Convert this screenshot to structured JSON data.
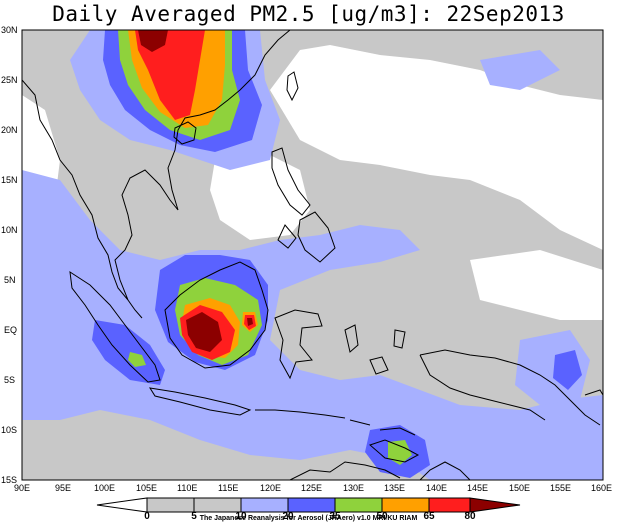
{
  "title": "Daily Averaged PM2.5 [ug/m3]: 22Sep2013",
  "map": {
    "lat_labels": [
      "30N",
      "25N",
      "20N",
      "15N",
      "10N",
      "5N",
      "EQ",
      "5S",
      "10S",
      "15S"
    ],
    "lon_labels": [
      "90E",
      "95E",
      "100E",
      "105E",
      "110E",
      "115E",
      "120E",
      "125E",
      "130E",
      "135E",
      "140E",
      "145E",
      "150E",
      "155E",
      "160E"
    ],
    "extent": {
      "lon_min": 90,
      "lon_max": 160,
      "lat_min": -15,
      "lat_max": 30
    }
  },
  "colorbar": {
    "levels": [
      "0",
      "5",
      "10",
      "20",
      "35",
      "50",
      "65",
      "80"
    ],
    "colors": [
      "#ffffff",
      "#c8c8c8",
      "#a7b0ff",
      "#5a62ff",
      "#8fd23c",
      "#ffa000",
      "#ff1e1e",
      "#8c0000"
    ]
  },
  "credit": "The Japanese Reanalysis for Aerosol (JRAero) v1.0 MRI/KU RIAM"
}
